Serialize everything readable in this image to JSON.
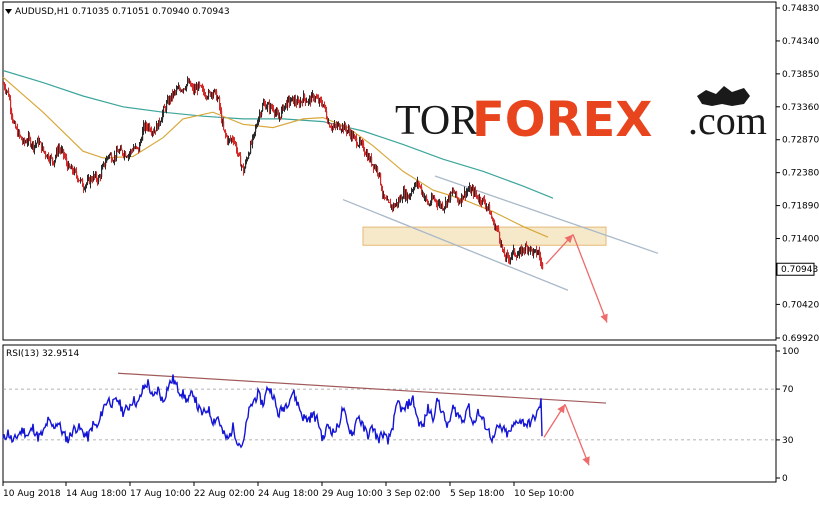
{
  "chart_data": [
    {
      "type": "candlestick",
      "header": "AUDUSD,H1  0.71035 0.71051 0.70940 0.70943",
      "symbol": "AUDUSD",
      "timeframe": "H1",
      "ohlc": {
        "open": 0.71035,
        "high": 0.71051,
        "low": 0.7094,
        "close": 0.70943
      },
      "last_price_label": "0.70943",
      "ylim": [
        0.6992,
        0.7483
      ],
      "y_ticks": [
        "0.74830",
        "0.74340",
        "0.73850",
        "0.73360",
        "0.72870",
        "0.72380",
        "0.71890",
        "0.71400",
        "0.70943",
        "0.70420",
        "0.69920"
      ],
      "x_tick_labels": [
        "10 Aug 2018",
        "14 Aug 18:00",
        "17 Aug 10:00",
        "22 Aug 02:00",
        "24 Aug 18:00",
        "29 Aug 10:00",
        "3 Sep 02:00",
        "5 Sep 18:00",
        "10 Sep 10:00"
      ],
      "close_path": [
        [
          0,
          0.737
        ],
        [
          5,
          0.7355
        ],
        [
          10,
          0.731
        ],
        [
          15,
          0.7295
        ],
        [
          20,
          0.7282
        ],
        [
          25,
          0.7288
        ],
        [
          30,
          0.7278
        ],
        [
          35,
          0.7285
        ],
        [
          40,
          0.727
        ],
        [
          45,
          0.7262
        ],
        [
          50,
          0.7255
        ],
        [
          55,
          0.7275
        ],
        [
          60,
          0.7265
        ],
        [
          65,
          0.7245
        ],
        [
          70,
          0.724
        ],
        [
          75,
          0.723
        ],
        [
          80,
          0.7218
        ],
        [
          85,
          0.7225
        ],
        [
          90,
          0.7232
        ],
        [
          95,
          0.7228
        ],
        [
          100,
          0.7248
        ],
        [
          105,
          0.7265
        ],
        [
          110,
          0.726
        ],
        [
          115,
          0.727
        ],
        [
          120,
          0.7268
        ],
        [
          125,
          0.7265
        ],
        [
          130,
          0.7275
        ],
        [
          135,
          0.7272
        ],
        [
          140,
          0.7305
        ],
        [
          145,
          0.7308
        ],
        [
          150,
          0.73
        ],
        [
          155,
          0.731
        ],
        [
          160,
          0.733
        ],
        [
          165,
          0.7345
        ],
        [
          170,
          0.7355
        ],
        [
          175,
          0.7362
        ],
        [
          180,
          0.7365
        ],
        [
          185,
          0.7372
        ],
        [
          190,
          0.736
        ],
        [
          195,
          0.7366
        ],
        [
          200,
          0.7358
        ],
        [
          205,
          0.7354
        ],
        [
          210,
          0.736
        ],
        [
          215,
          0.7345
        ],
        [
          220,
          0.73
        ],
        [
          225,
          0.7285
        ],
        [
          230,
          0.729
        ],
        [
          235,
          0.7262
        ],
        [
          240,
          0.724
        ],
        [
          245,
          0.7268
        ],
        [
          250,
          0.729
        ],
        [
          255,
          0.7322
        ],
        [
          260,
          0.734
        ],
        [
          265,
          0.7336
        ],
        [
          270,
          0.7334
        ],
        [
          275,
          0.7318
        ],
        [
          280,
          0.7336
        ],
        [
          285,
          0.7344
        ],
        [
          290,
          0.7346
        ],
        [
          295,
          0.734
        ],
        [
          300,
          0.735
        ],
        [
          305,
          0.7344
        ],
        [
          310,
          0.7352
        ],
        [
          315,
          0.7344
        ],
        [
          320,
          0.734
        ],
        [
          325,
          0.7312
        ],
        [
          330,
          0.7305
        ],
        [
          335,
          0.7308
        ],
        [
          340,
          0.7306
        ],
        [
          345,
          0.73
        ],
        [
          350,
          0.729
        ],
        [
          355,
          0.7282
        ],
        [
          360,
          0.7275
        ],
        [
          365,
          0.726
        ],
        [
          370,
          0.725
        ],
        [
          375,
          0.724
        ],
        [
          380,
          0.72
        ],
        [
          385,
          0.719
        ],
        [
          390,
          0.7188
        ],
        [
          395,
          0.7195
        ],
        [
          400,
          0.7208
        ],
        [
          405,
          0.7202
        ],
        [
          410,
          0.7218
        ],
        [
          415,
          0.7222
        ],
        [
          420,
          0.7205
        ],
        [
          425,
          0.719
        ],
        [
          430,
          0.72
        ],
        [
          435,
          0.7192
        ],
        [
          440,
          0.7188
        ],
        [
          445,
          0.72
        ],
        [
          450,
          0.721
        ],
        [
          455,
          0.7195
        ],
        [
          460,
          0.7206
        ],
        [
          465,
          0.7212
        ],
        [
          470,
          0.721
        ],
        [
          475,
          0.72
        ],
        [
          480,
          0.7196
        ],
        [
          485,
          0.7185
        ],
        [
          490,
          0.7162
        ],
        [
          495,
          0.715
        ],
        [
          500,
          0.7115
        ],
        [
          505,
          0.711
        ],
        [
          510,
          0.712
        ],
        [
          515,
          0.7115
        ],
        [
          520,
          0.7125
        ],
        [
          525,
          0.7128
        ],
        [
          530,
          0.7118
        ],
        [
          535,
          0.712
        ],
        [
          539,
          0.7094
        ]
      ],
      "ma_fast": [
        [
          0,
          0.738
        ],
        [
          40,
          0.7328
        ],
        [
          80,
          0.727
        ],
        [
          100,
          0.726
        ],
        [
          130,
          0.7262
        ],
        [
          160,
          0.729
        ],
        [
          180,
          0.7318
        ],
        [
          210,
          0.7328
        ],
        [
          240,
          0.731
        ],
        [
          270,
          0.7305
        ],
        [
          300,
          0.7318
        ],
        [
          320,
          0.732
        ],
        [
          345,
          0.7305
        ],
        [
          370,
          0.7278
        ],
        [
          400,
          0.724
        ],
        [
          430,
          0.7212
        ],
        [
          460,
          0.7198
        ],
        [
          490,
          0.718
        ],
        [
          520,
          0.7158
        ],
        [
          545,
          0.7142
        ]
      ],
      "ma_slow": [
        [
          0,
          0.739
        ],
        [
          40,
          0.7372
        ],
        [
          80,
          0.7352
        ],
        [
          120,
          0.7336
        ],
        [
          160,
          0.7328
        ],
        [
          200,
          0.7322
        ],
        [
          240,
          0.7318
        ],
        [
          280,
          0.7318
        ],
        [
          320,
          0.7314
        ],
        [
          360,
          0.73
        ],
        [
          400,
          0.728
        ],
        [
          440,
          0.7258
        ],
        [
          480,
          0.724
        ],
        [
          520,
          0.7218
        ],
        [
          550,
          0.72
        ]
      ],
      "annotations": {
        "channel_upper": [
          [
            432,
            0.7233
          ],
          [
            655,
            0.7118
          ]
        ],
        "channel_lower": [
          [
            340,
            0.7198
          ],
          [
            565,
            0.7063
          ]
        ],
        "resistance_zone": [
          0.713,
          0.7157
        ],
        "arrow_up": [
          [
            543,
            0.7102
          ],
          [
            570,
            0.7146
          ]
        ],
        "arrow_down": [
          [
            570,
            0.7146
          ],
          [
            604,
            0.7015
          ]
        ]
      },
      "colors": {
        "bull": "#2b2b2b",
        "bear": "#d42a2a",
        "ma_fast": "#d8a83c",
        "ma_slow": "#3ca59c",
        "arrows": "#ee6b6b",
        "zone": "#f6e7c4",
        "zone_border": "#e3b267",
        "channel": "#a9b9c9"
      }
    },
    {
      "type": "line",
      "label": "RSI(13) 32.9514",
      "indicator": "RSI",
      "period": 13,
      "value": 32.9514,
      "ylim": [
        0,
        100
      ],
      "y_ticks": [
        "100",
        "70",
        "30",
        "0"
      ],
      "trendline": [
        [
          115,
          82.5
        ],
        [
          603,
          59
        ]
      ],
      "arrows": [
        [
          [
            541,
            32
          ],
          [
            562,
            58
          ]
        ],
        [
          [
            562,
            58
          ],
          [
            586,
            10
          ]
        ]
      ],
      "series": [
        [
          0,
          30
        ],
        [
          5,
          36
        ],
        [
          10,
          28
        ],
        [
          15,
          34
        ],
        [
          20,
          38
        ],
        [
          25,
          33
        ],
        [
          30,
          40
        ],
        [
          35,
          32
        ],
        [
          40,
          35
        ],
        [
          45,
          45
        ],
        [
          50,
          40
        ],
        [
          55,
          44
        ],
        [
          60,
          35
        ],
        [
          65,
          30
        ],
        [
          70,
          38
        ],
        [
          75,
          40
        ],
        [
          80,
          36
        ],
        [
          85,
          32
        ],
        [
          90,
          42
        ],
        [
          95,
          40
        ],
        [
          100,
          55
        ],
        [
          105,
          62
        ],
        [
          110,
          58
        ],
        [
          115,
          62
        ],
        [
          120,
          52
        ],
        [
          125,
          55
        ],
        [
          130,
          62
        ],
        [
          135,
          58
        ],
        [
          140,
          70
        ],
        [
          145,
          75
        ],
        [
          150,
          62
        ],
        [
          155,
          70
        ],
        [
          160,
          60
        ],
        [
          165,
          72
        ],
        [
          170,
          78
        ],
        [
          175,
          70
        ],
        [
          180,
          66
        ],
        [
          185,
          60
        ],
        [
          190,
          68
        ],
        [
          195,
          55
        ],
        [
          200,
          50
        ],
        [
          205,
          55
        ],
        [
          210,
          45
        ],
        [
          215,
          48
        ],
        [
          220,
          35
        ],
        [
          225,
          30
        ],
        [
          230,
          40
        ],
        [
          235,
          28
        ],
        [
          240,
          25
        ],
        [
          245,
          50
        ],
        [
          250,
          60
        ],
        [
          255,
          66
        ],
        [
          260,
          58
        ],
        [
          265,
          72
        ],
        [
          270,
          66
        ],
        [
          275,
          50
        ],
        [
          280,
          55
        ],
        [
          285,
          60
        ],
        [
          290,
          68
        ],
        [
          295,
          58
        ],
        [
          300,
          48
        ],
        [
          305,
          46
        ],
        [
          310,
          50
        ],
        [
          315,
          45
        ],
        [
          320,
          30
        ],
        [
          325,
          42
        ],
        [
          330,
          36
        ],
        [
          335,
          40
        ],
        [
          340,
          55
        ],
        [
          345,
          40
        ],
        [
          350,
          35
        ],
        [
          355,
          50
        ],
        [
          360,
          40
        ],
        [
          365,
          34
        ],
        [
          370,
          40
        ],
        [
          375,
          30
        ],
        [
          380,
          35
        ],
        [
          385,
          28
        ],
        [
          390,
          42
        ],
        [
          395,
          60
        ],
        [
          400,
          52
        ],
        [
          405,
          58
        ],
        [
          410,
          62
        ],
        [
          415,
          45
        ],
        [
          420,
          40
        ],
        [
          425,
          55
        ],
        [
          430,
          48
        ],
        [
          435,
          62
        ],
        [
          440,
          50
        ],
        [
          445,
          40
        ],
        [
          450,
          55
        ],
        [
          455,
          50
        ],
        [
          460,
          45
        ],
        [
          465,
          58
        ],
        [
          470,
          42
        ],
        [
          475,
          52
        ],
        [
          480,
          45
        ],
        [
          485,
          38
        ],
        [
          490,
          30
        ],
        [
          495,
          40
        ],
        [
          500,
          38
        ],
        [
          505,
          34
        ],
        [
          510,
          40
        ],
        [
          515,
          46
        ],
        [
          520,
          44
        ],
        [
          525,
          42
        ],
        [
          530,
          46
        ],
        [
          535,
          52
        ],
        [
          538,
          60
        ],
        [
          541,
          33
        ]
      ],
      "color": "#1414d6"
    }
  ],
  "logo": {
    "part1": "TOR",
    "part2": "FOREX",
    "part3": ".com"
  }
}
